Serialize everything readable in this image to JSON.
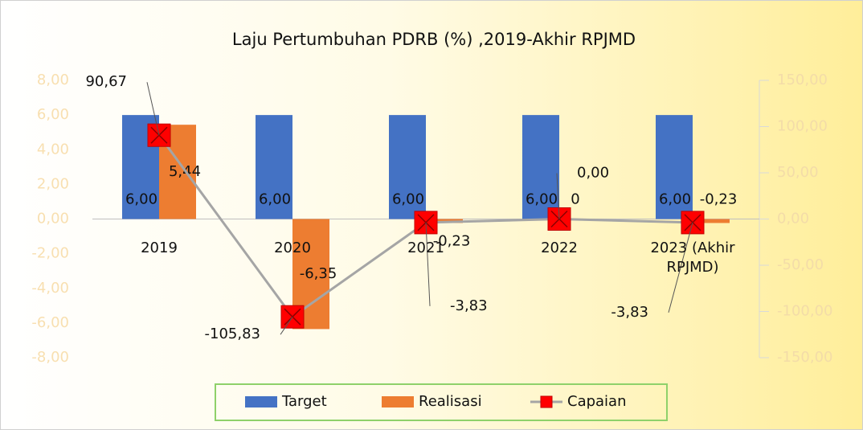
{
  "chart_data": {
    "type": "bar",
    "title": "Laju Pertumbuhan PDRB (%) ,2019-Akhir RPJMD",
    "categories": [
      "2019",
      "2020",
      "2021",
      "2022",
      "2023 (Akhir RPJMD)"
    ],
    "series": [
      {
        "name": "Target",
        "type": "bar",
        "color": "#4472c4",
        "values": [
          6,
          6,
          6,
          6,
          6
        ],
        "value_labels": [
          "6,00",
          "6,00",
          "6,00",
          "6,00",
          "6,00"
        ]
      },
      {
        "name": "Realisasi",
        "type": "bar",
        "color": "#ed7d31",
        "values": [
          5.44,
          -6.35,
          -0.23,
          0,
          -0.23
        ],
        "value_labels": [
          "5,44",
          "-6,35",
          "-0,23",
          "0",
          "-0,23"
        ]
      },
      {
        "name": "Capaian",
        "type": "line",
        "axis": "y2",
        "color": "#a5a5a5",
        "marker_color": "#ff0000",
        "values": [
          90.67,
          -105.83,
          -3.83,
          0,
          -3.83
        ],
        "value_labels": [
          "90,67",
          "-105,83",
          "-3,83",
          "0,00",
          "-3,83"
        ]
      }
    ],
    "ylim": [
      -8,
      8
    ],
    "yticks": [
      {
        "value": -8,
        "label": "-8,00"
      },
      {
        "value": -6,
        "label": "-6,00"
      },
      {
        "value": -4,
        "label": "-4,00"
      },
      {
        "value": -2,
        "label": "-2,00"
      },
      {
        "value": 0,
        "label": "0,00"
      },
      {
        "value": 2,
        "label": "2,00"
      },
      {
        "value": 4,
        "label": "4,00"
      },
      {
        "value": 6,
        "label": "6,00"
      },
      {
        "value": 8,
        "label": "8,00"
      }
    ],
    "y2lim": [
      -150,
      150
    ],
    "y2ticks": [
      {
        "value": -150,
        "label": "-150,00"
      },
      {
        "value": -100,
        "label": "-100,00"
      },
      {
        "value": -50,
        "label": "-50,00"
      },
      {
        "value": 0,
        "label": "0,00"
      },
      {
        "value": 50,
        "label": "50,00"
      },
      {
        "value": 100,
        "label": "100,00"
      },
      {
        "value": 150,
        "label": "150,00"
      }
    ],
    "legend": "bottom"
  }
}
